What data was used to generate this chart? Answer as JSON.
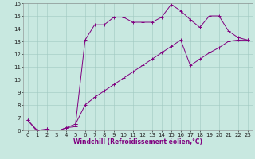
{
  "xlabel": "Windchill (Refroidissement éolien,°C)",
  "line1_x": [
    0,
    1,
    2,
    3,
    4,
    5,
    5,
    6,
    7,
    8,
    9,
    10,
    11,
    12,
    13,
    14,
    15,
    16,
    17,
    18,
    19,
    20,
    21,
    22,
    23
  ],
  "line1_y": [
    6.8,
    5.9,
    6.1,
    5.9,
    6.2,
    6.3,
    6.5,
    13.1,
    14.3,
    14.3,
    14.9,
    14.9,
    14.5,
    14.5,
    14.5,
    14.9,
    15.9,
    15.4,
    14.7,
    14.1,
    15.0,
    15.0,
    13.8,
    13.3,
    13.1
  ],
  "line2_x": [
    0,
    1,
    2,
    3,
    4,
    5,
    6,
    7,
    8,
    9,
    10,
    11,
    12,
    13,
    14,
    15,
    16,
    17,
    18,
    19,
    20,
    21,
    22,
    23
  ],
  "line2_y": [
    6.8,
    6.0,
    6.1,
    5.9,
    6.2,
    6.5,
    8.0,
    8.6,
    9.1,
    9.6,
    10.1,
    10.6,
    11.1,
    11.6,
    12.1,
    12.6,
    13.1,
    11.1,
    11.6,
    12.1,
    12.5,
    13.0,
    13.1,
    13.1
  ],
  "line_color": "#800080",
  "bg_color": "#c8e8e0",
  "grid_color": "#a0c8c0",
  "xlim": [
    -0.5,
    23.5
  ],
  "ylim": [
    6,
    16
  ],
  "yticks": [
    6,
    7,
    8,
    9,
    10,
    11,
    12,
    13,
    14,
    15,
    16
  ],
  "xticks": [
    0,
    1,
    2,
    3,
    4,
    5,
    6,
    7,
    8,
    9,
    10,
    11,
    12,
    13,
    14,
    15,
    16,
    17,
    18,
    19,
    20,
    21,
    22,
    23
  ],
  "tick_fontsize": 5,
  "xlabel_fontsize": 5.5,
  "marker_size": 2.5,
  "line_width": 0.7
}
